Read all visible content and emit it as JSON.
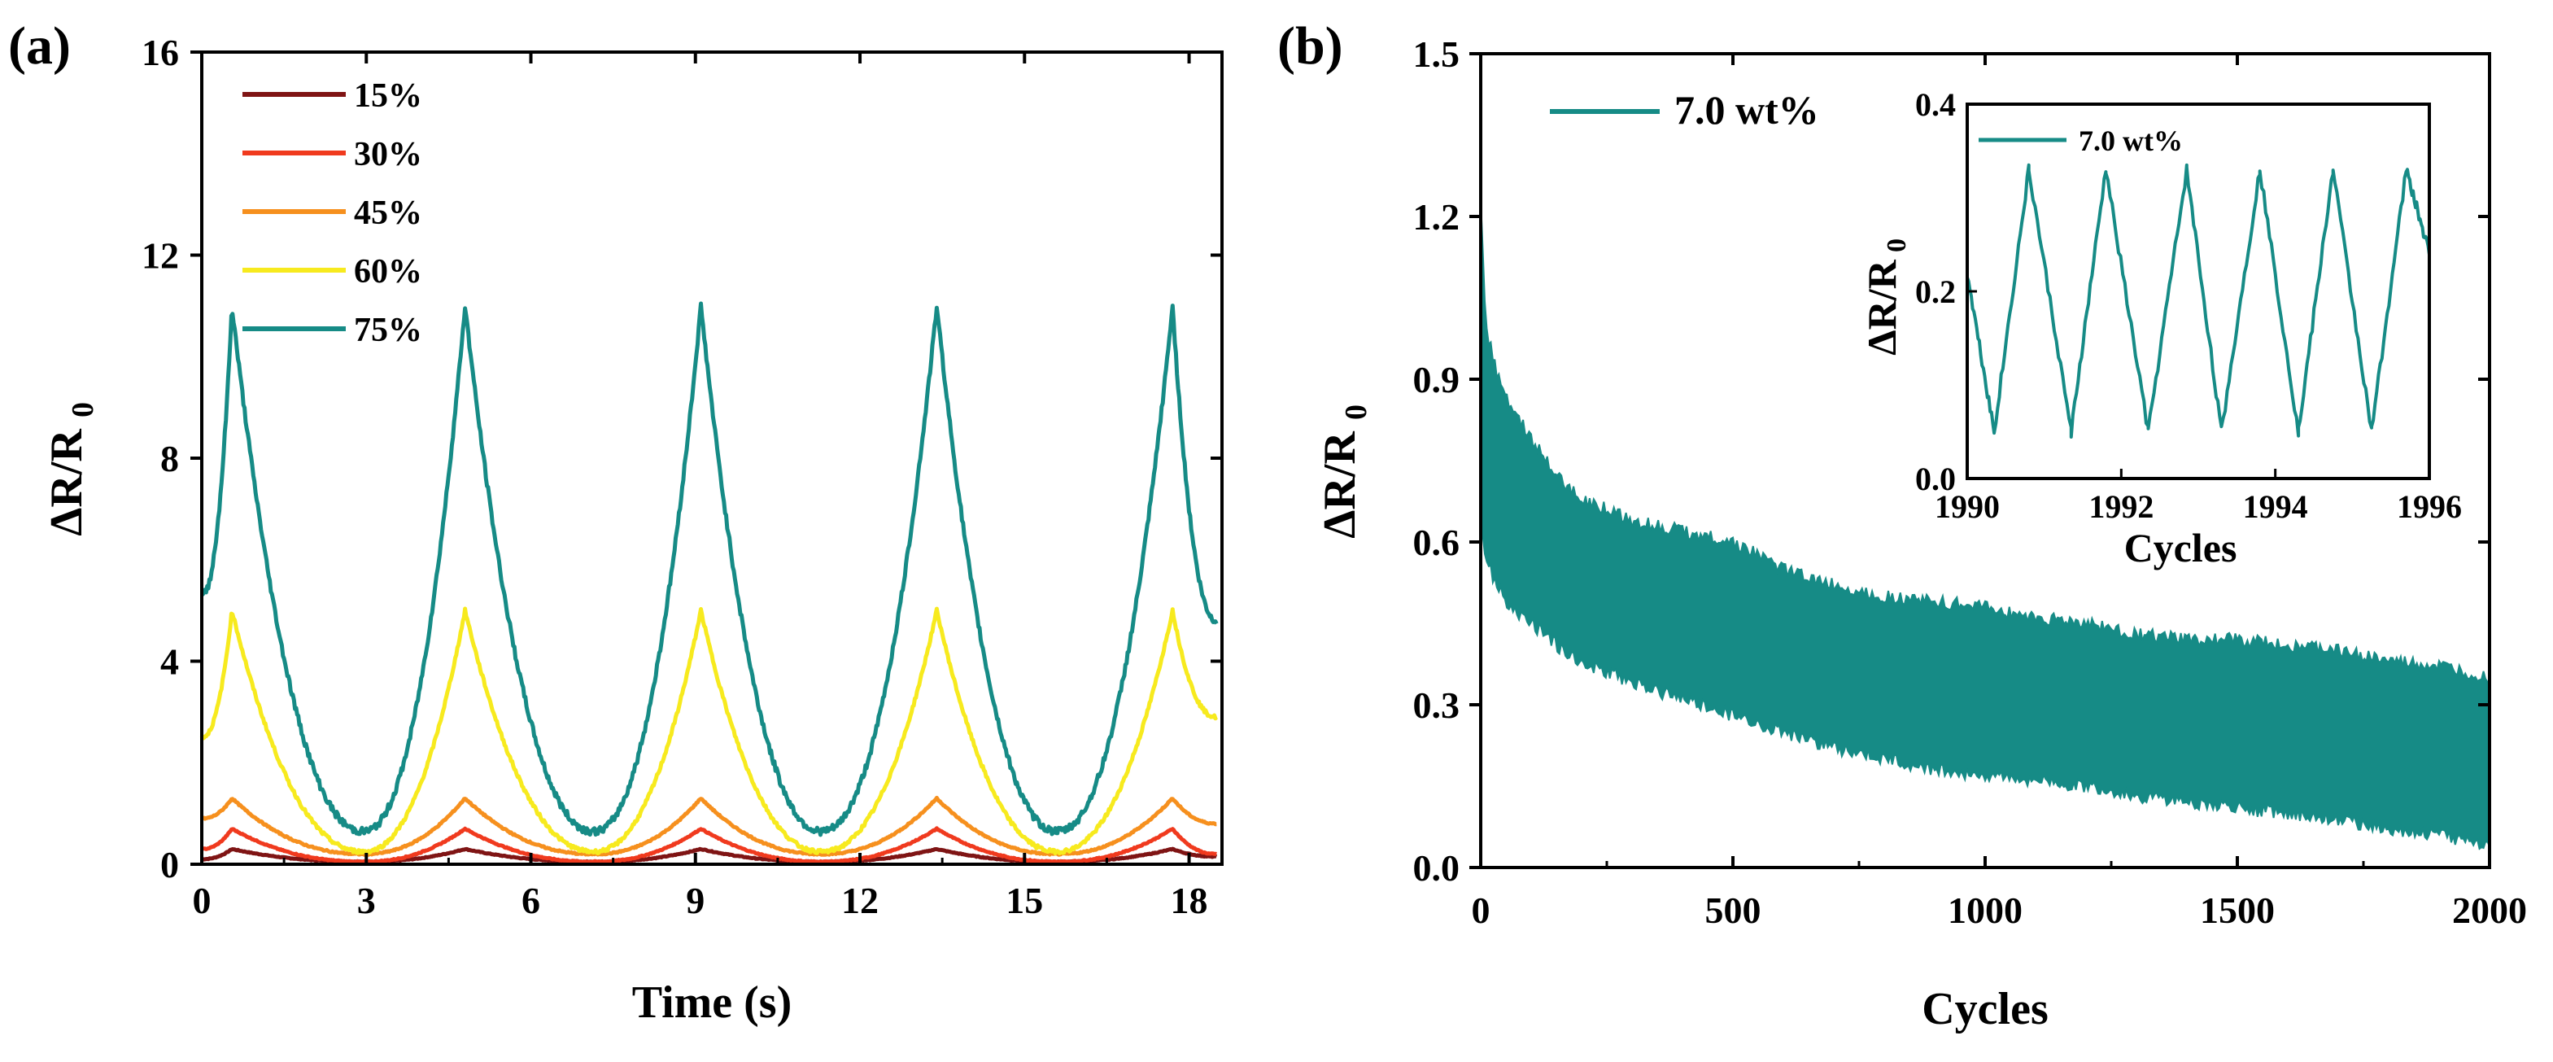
{
  "figure": {
    "background": "#ffffff"
  },
  "chart_data": [
    {
      "panel": "(a)",
      "type": "line",
      "title": "",
      "xlabel": "Time (s)",
      "ylabel_main": "ΔR/R",
      "ylabel_sub": "0",
      "xlim": [
        0,
        18.6
      ],
      "ylim": [
        0,
        16
      ],
      "xticks": [
        0,
        3,
        6,
        9,
        12,
        15,
        18
      ],
      "yticks": [
        0,
        4,
        8,
        12,
        16
      ],
      "grid": false,
      "legend_position": "top-left",
      "peak_times": [
        0.55,
        4.8,
        9.1,
        13.4,
        17.7
      ],
      "min_times": [
        2.95,
        7.15,
        11.3,
        15.6
      ],
      "series": [
        {
          "name": "15%",
          "color": "#7f1414",
          "peak": 0.3,
          "min": 0.05,
          "start": 0.1,
          "end": 0.15
        },
        {
          "name": "30%",
          "color": "#f03a1e",
          "peak": 0.7,
          "min": 0.05,
          "start": 0.3,
          "end": 0.2
        },
        {
          "name": "45%",
          "color": "#f6901e",
          "peak": 1.3,
          "min": 0.2,
          "start": 0.9,
          "end": 0.8
        },
        {
          "name": "60%",
          "color": "#f7ea1e",
          "peak": 5.0,
          "min": 0.25,
          "start": 2.5,
          "end": 2.9
        },
        {
          "name": "75%",
          "color": "#168b86",
          "peak": 11.0,
          "min": 0.65,
          "start": 5.3,
          "end": 4.8
        }
      ]
    },
    {
      "panel": "(b)",
      "type": "area",
      "title": "",
      "xlabel": "Cycles",
      "ylabel_main": "ΔR/R",
      "ylabel_sub": "0",
      "xlim": [
        0,
        2000
      ],
      "ylim": [
        0,
        1.5
      ],
      "xticks": [
        0,
        500,
        1000,
        1500,
        2000
      ],
      "yticks": [
        0.0,
        0.3,
        0.6,
        0.9,
        1.2,
        1.5
      ],
      "grid": false,
      "legend_position": "top-left",
      "series": [
        {
          "name": "7.0 wt%",
          "color": "#168b86",
          "x": [
            0,
            10,
            30,
            60,
            100,
            150,
            200,
            250,
            300,
            400,
            500,
            600,
            700,
            800,
            900,
            1000,
            1100,
            1200,
            1300,
            1400,
            1500,
            1600,
            1700,
            1800,
            1900,
            2000
          ],
          "upper": [
            1.23,
            1.0,
            0.92,
            0.85,
            0.79,
            0.72,
            0.68,
            0.66,
            0.64,
            0.62,
            0.6,
            0.55,
            0.52,
            0.5,
            0.49,
            0.48,
            0.46,
            0.45,
            0.43,
            0.42,
            0.42,
            0.41,
            0.4,
            0.38,
            0.37,
            0.35
          ],
          "lower": [
            0.62,
            0.58,
            0.52,
            0.48,
            0.45,
            0.41,
            0.38,
            0.36,
            0.34,
            0.31,
            0.28,
            0.25,
            0.22,
            0.2,
            0.18,
            0.17,
            0.16,
            0.15,
            0.13,
            0.12,
            0.11,
            0.1,
            0.09,
            0.07,
            0.06,
            0.04
          ]
        }
      ],
      "inset": {
        "type": "line",
        "xlabel": "Cycles",
        "ylabel_main": "ΔR/R",
        "ylabel_sub": "0",
        "xlim": [
          1990,
          1996
        ],
        "ylim": [
          0,
          0.4
        ],
        "xticks": [
          1990,
          1992,
          1994,
          1996
        ],
        "yticks": [
          0.0,
          0.2,
          0.4
        ],
        "legend_label": "7.0 wt%",
        "color": "#168b86",
        "peak_x": [
          1990.8,
          1991.8,
          1992.85,
          1993.8,
          1994.75,
          1995.7
        ],
        "min_x": [
          1990.35,
          1991.35,
          1992.35,
          1993.3,
          1994.3,
          1995.25
        ],
        "peak_value": 0.33,
        "min_value": 0.05,
        "start_value": 0.22,
        "end_value": 0.24
      }
    }
  ]
}
